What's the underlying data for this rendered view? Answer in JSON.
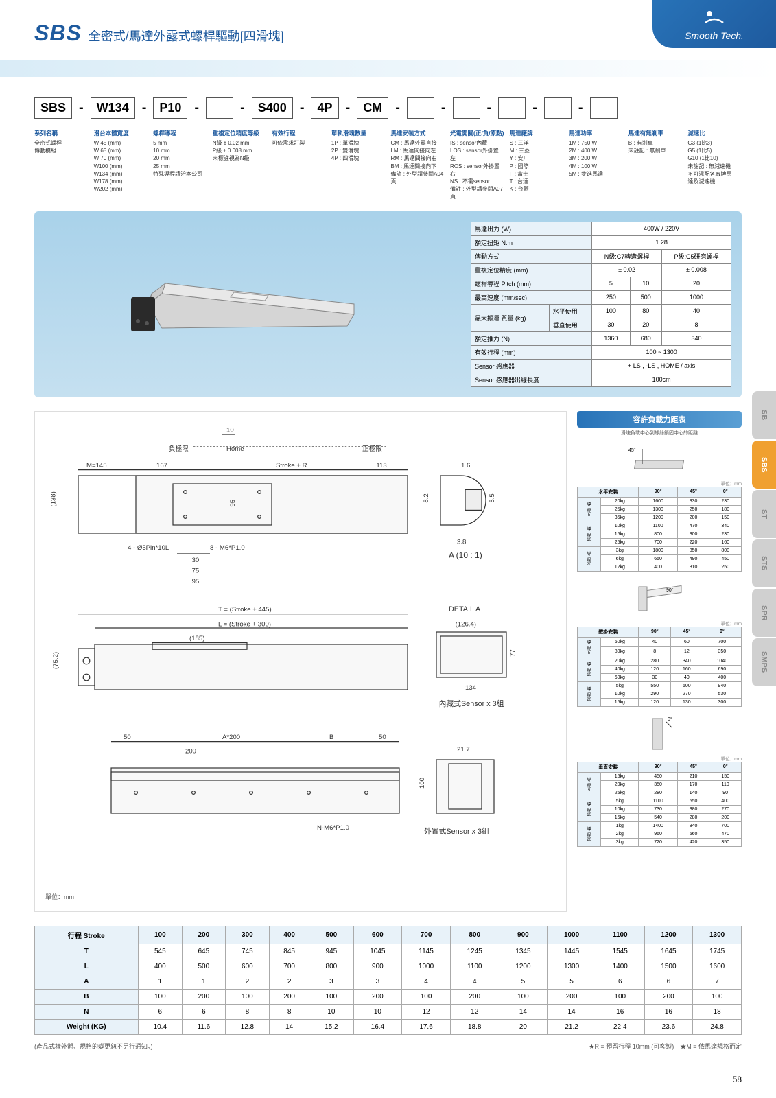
{
  "header": {
    "brand": "SBS",
    "subtitle": "全密式/馬達外露式螺桿驅動[四滑塊]",
    "logo": "Smooth Tech."
  },
  "model_code": [
    "SBS",
    "W134",
    "P10",
    "",
    "S400",
    "4P",
    "CM",
    "",
    "",
    "",
    "",
    ""
  ],
  "spec_columns": [
    {
      "title": "系列名稱",
      "items": [
        "全密式螺桿",
        "傳動模組"
      ]
    },
    {
      "title": "滑台本體寬度",
      "items": [
        "W 45 (mm)",
        "W 65 (mm)",
        "W 70 (mm)",
        "W100 (mm)",
        "W134 (mm)",
        "W178 (mm)",
        "W202 (mm)"
      ]
    },
    {
      "title": "螺桿導程",
      "items": [
        "5 mm",
        "10 mm",
        "20 mm",
        "25 mm",
        "特殊導程請洽本公司"
      ]
    },
    {
      "title": "重複定位精度等級",
      "items": [
        "N級 ± 0.02 mm",
        "P級 ± 0.008 mm",
        "未標註視為N級"
      ]
    },
    {
      "title": "有效行程",
      "items": [
        "可依需求訂製"
      ]
    },
    {
      "title": "單軌滑塊數量",
      "items": [
        "1P : 單滑塊",
        "2P : 雙滑塊",
        "4P : 四滑塊"
      ]
    },
    {
      "title": "馬達安裝方式",
      "items": [
        "CM : 馬達外露直接",
        "LM : 馬達間接向左",
        "RM : 馬達間接向右",
        "BM : 馬達間接向下",
        "備註 : 外型請參閱A04頁"
      ]
    },
    {
      "title": "光電開關(正/負/原點)",
      "items": [
        "IS : sensor內藏",
        "LOS : sensor外掛置左",
        "ROS : sensor外掛置右",
        "NS : 不需sensor",
        "備註 : 外型請參閱A07頁"
      ]
    },
    {
      "title": "馬達廠牌",
      "items": [
        "S : 三洋",
        "M : 三菱",
        "Y : 安川",
        "P : 國際",
        "F : 富士",
        "T : 台達",
        "K : 台鬱"
      ]
    },
    {
      "title": "馬達功率",
      "items": [
        "1M : 750 W",
        "2M : 400 W",
        "3M : 200 W",
        "4M : 100 W",
        "5M : 步進馬達"
      ]
    },
    {
      "title": "馬達有無剎車",
      "items": [
        "B : 有剎車",
        "未註記 : 無剎車"
      ]
    },
    {
      "title": "減速比",
      "items": [
        "G3 (1比3)",
        "G5 (1比5)",
        "G10 (1比10)",
        "未註記 : 無減速機",
        "＊可混配各廠牌馬",
        "達及減速機"
      ]
    }
  ],
  "product_spec": {
    "rows": [
      {
        "label": "馬達出力 (W)",
        "span": 3,
        "value": "400W / 220V"
      },
      {
        "label": "額定扭矩 N.m",
        "span": 3,
        "value": "1.28"
      },
      {
        "label": "傳動方式",
        "cols": [
          "N級:C7轉造螺桿",
          "P級:C5研磨螺桿"
        ],
        "colspan": [
          2,
          1
        ]
      },
      {
        "label": "重複定位精度 (mm)",
        "cols": [
          "± 0.02",
          "± 0.008"
        ],
        "colspan": [
          2,
          1
        ]
      },
      {
        "label": "螺桿導程 Pitch (mm)",
        "cols": [
          "5",
          "10",
          "20"
        ]
      },
      {
        "label": "最高速度 (mm/sec)",
        "cols": [
          "250",
          "500",
          "1000"
        ]
      },
      {
        "label2": "最大搬運\n質量 (kg)",
        "sub": "水平使用",
        "cols": [
          "100",
          "80",
          "40"
        ]
      },
      {
        "sub": "垂直使用",
        "cols": [
          "30",
          "20",
          "8"
        ]
      },
      {
        "label": "額定推力 (N)",
        "cols": [
          "1360",
          "680",
          "340"
        ]
      },
      {
        "label": "有效行程 (mm)",
        "span": 3,
        "value": "100 ~ 1300"
      },
      {
        "label": "Sensor 感應器",
        "span": 3,
        "value": "+ LS , -LS , HOME / axis"
      },
      {
        "label": "Sensor 感應器出線長度",
        "span": 3,
        "value": "100cm"
      }
    ]
  },
  "drawing_labels": {
    "top_dim": "10",
    "neg_limit": "負極限",
    "home": "Home",
    "pos_limit": "正極限",
    "m145": "M=145",
    "d167": "167",
    "stroke_r": "Stroke + R",
    "d113": "113",
    "d138": "(138)",
    "d95": "95",
    "pin": "4 - Ø5Pin*10L",
    "m6": "8 - M6*P1.0",
    "d30": "30",
    "d75": "75",
    "d1_6": "1.6",
    "d8_2": "8.2",
    "d5_5": "5.5",
    "d3_8": "3.8",
    "a10": "A (10 : 1)",
    "t_stroke": "T = (Stroke + 445)",
    "l_stroke": "L = (Stroke + 300)",
    "d185": "(185)",
    "d75_2": "(75.2)",
    "detail_a": "DETAIL A",
    "d126_4": "(126.4)",
    "d77": "77",
    "d134": "134",
    "sensor_in": "內藏式Sensor x 3組",
    "d50": "50",
    "a200": "A*200",
    "b_label": "B",
    "d200": "200",
    "nm6": "N-M6*P1.0",
    "d21_7": "21.7",
    "d100": "100",
    "sensor_out": "外置式Sensor x 3組",
    "unit": "單位：mm"
  },
  "load_section": {
    "header": "容許負載力距表",
    "note": "滑塊負載中心到螺絲鎖固中心的距離",
    "tables": [
      {
        "title": "水平安裝",
        "unit": "單位：mm",
        "angles": [
          "90°",
          "45°",
          "0°"
        ],
        "groups": [
          {
            "label": "導\n程\n5",
            "rows": [
              [
                "20kg",
                "1600",
                "330",
                "230"
              ],
              [
                "25kg",
                "1300",
                "250",
                "180"
              ],
              [
                "35kg",
                "1200",
                "200",
                "150"
              ]
            ]
          },
          {
            "label": "導\n程\n10",
            "rows": [
              [
                "10kg",
                "1100",
                "470",
                "340"
              ],
              [
                "15kg",
                "800",
                "300",
                "230"
              ],
              [
                "25kg",
                "700",
                "220",
                "160"
              ]
            ]
          },
          {
            "label": "導\n程\n20",
            "rows": [
              [
                "3kg",
                "1800",
                "850",
                "800"
              ],
              [
                "6kg",
                "650",
                "490",
                "450"
              ],
              [
                "12kg",
                "400",
                "310",
                "250"
              ]
            ]
          }
        ]
      },
      {
        "title": "壁掛安裝",
        "unit": "單位：mm",
        "angles": [
          "90°",
          "45°",
          "0°"
        ],
        "groups": [
          {
            "label": "導\n程\n5",
            "rows": [
              [
                "60kg",
                "40",
                "60",
                "700"
              ],
              [
                "80kg",
                "8",
                "12",
                "350"
              ]
            ]
          },
          {
            "label": "導\n程\n10",
            "rows": [
              [
                "20kg",
                "280",
                "340",
                "1040"
              ],
              [
                "40kg",
                "120",
                "160",
                "690"
              ],
              [
                "60kg",
                "30",
                "40",
                "400"
              ]
            ]
          },
          {
            "label": "導\n程\n20",
            "rows": [
              [
                "5kg",
                "550",
                "500",
                "940"
              ],
              [
                "10kg",
                "290",
                "270",
                "530"
              ],
              [
                "15kg",
                "120",
                "130",
                "300"
              ]
            ]
          }
        ]
      },
      {
        "title": "垂直安裝",
        "unit": "單位：mm",
        "angles": [
          "90°",
          "45°",
          "0°"
        ],
        "groups": [
          {
            "label": "導\n程\n5",
            "rows": [
              [
                "15kg",
                "450",
                "210",
                "150"
              ],
              [
                "20kg",
                "350",
                "170",
                "110"
              ],
              [
                "25kg",
                "280",
                "140",
                "90"
              ]
            ]
          },
          {
            "label": "導\n程\n10",
            "rows": [
              [
                "5kg",
                "1100",
                "550",
                "400"
              ],
              [
                "10kg",
                "730",
                "380",
                "270"
              ],
              [
                "15kg",
                "540",
                "280",
                "200"
              ]
            ]
          },
          {
            "label": "導\n程\n20",
            "rows": [
              [
                "1kg",
                "1400",
                "840",
                "700"
              ],
              [
                "2kg",
                "960",
                "560",
                "470"
              ],
              [
                "3kg",
                "720",
                "420",
                "350"
              ]
            ]
          }
        ]
      }
    ]
  },
  "side_tabs": [
    "SB",
    "SBS",
    "ST",
    "STS",
    "SPR",
    "SMPS"
  ],
  "active_tab": "SBS",
  "stroke_table": {
    "header": "行程 Stroke",
    "strokes": [
      "100",
      "200",
      "300",
      "400",
      "500",
      "600",
      "700",
      "800",
      "900",
      "1000",
      "1100",
      "1200",
      "1300"
    ],
    "rows": [
      {
        "label": "T",
        "values": [
          "545",
          "645",
          "745",
          "845",
          "945",
          "1045",
          "1145",
          "1245",
          "1345",
          "1445",
          "1545",
          "1645",
          "1745"
        ]
      },
      {
        "label": "L",
        "values": [
          "400",
          "500",
          "600",
          "700",
          "800",
          "900",
          "1000",
          "1100",
          "1200",
          "1300",
          "1400",
          "1500",
          "1600"
        ]
      },
      {
        "label": "A",
        "values": [
          "1",
          "1",
          "2",
          "2",
          "3",
          "3",
          "4",
          "4",
          "5",
          "5",
          "6",
          "6",
          "7"
        ]
      },
      {
        "label": "B",
        "values": [
          "100",
          "200",
          "100",
          "200",
          "100",
          "200",
          "100",
          "200",
          "100",
          "200",
          "100",
          "200",
          "100"
        ]
      },
      {
        "label": "N",
        "values": [
          "6",
          "6",
          "8",
          "8",
          "10",
          "10",
          "12",
          "12",
          "14",
          "14",
          "16",
          "16",
          "18"
        ]
      },
      {
        "label": "Weight (KG)",
        "values": [
          "10.4",
          "11.6",
          "12.8",
          "14",
          "15.2",
          "16.4",
          "17.6",
          "18.8",
          "20",
          "21.2",
          "22.4",
          "23.6",
          "24.8"
        ]
      }
    ]
  },
  "footnotes": {
    "left": "(產品式樣外觀、規格的變更恕不另行通知。)",
    "right": "★R = 預留行程 10mm (可客製)　★M = 依馬達規格而定"
  },
  "page_number": "58"
}
